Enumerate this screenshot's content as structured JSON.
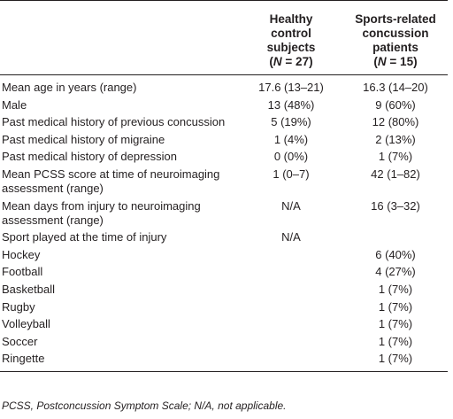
{
  "header": {
    "col1": "",
    "col2": {
      "line1": "Healthy",
      "line2": "control",
      "line3": "subjects",
      "n_open": "(",
      "n_sym": "N",
      "n_rest": " = 27)"
    },
    "col3": {
      "line1": "Sports-related",
      "line2": "concussion",
      "line3": "patients",
      "n_open": "(",
      "n_sym": "N",
      "n_rest": " = 15)"
    }
  },
  "rows": [
    {
      "label": "Mean age in years (range)",
      "healthy": "17.6 (13–21)",
      "patients": "16.3 (14–20)"
    },
    {
      "label": "Male",
      "healthy": "13 (48%)",
      "patients": "9 (60%)"
    },
    {
      "label": "Past medical history of previous concussion",
      "healthy": "5 (19%)",
      "patients": "12 (80%)"
    },
    {
      "label": "Past medical history of migraine",
      "healthy": "1 (4%)",
      "patients": "2 (13%)"
    },
    {
      "label": "Past medical history of depression",
      "healthy": "0 (0%)",
      "patients": "1 (7%)"
    },
    {
      "label": "Mean PCSS score at time of neuroimaging assessment (range)",
      "healthy": "1 (0–7)",
      "patients": "42 (1–82)"
    },
    {
      "label": "Mean days from injury to neuroimaging assessment (range)",
      "healthy": "N/A",
      "patients": "16 (3–32)"
    },
    {
      "label": "Sport played at the time of injury",
      "healthy": "N/A",
      "patients": ""
    },
    {
      "label": "Hockey",
      "healthy": "",
      "patients": "6 (40%)"
    },
    {
      "label": "Football",
      "healthy": "",
      "patients": "4 (27%)"
    },
    {
      "label": "Basketball",
      "healthy": "",
      "patients": "1 (7%)"
    },
    {
      "label": "Rugby",
      "healthy": "",
      "patients": "1 (7%)"
    },
    {
      "label": "Volleyball",
      "healthy": "",
      "patients": "1 (7%)"
    },
    {
      "label": "Soccer",
      "healthy": "",
      "patients": "1 (7%)"
    },
    {
      "label": "Ringette",
      "healthy": "",
      "patients": "1 (7%)"
    }
  ],
  "footnote": "PCSS, Postconcussion Symptom Scale; N/A, not applicable."
}
